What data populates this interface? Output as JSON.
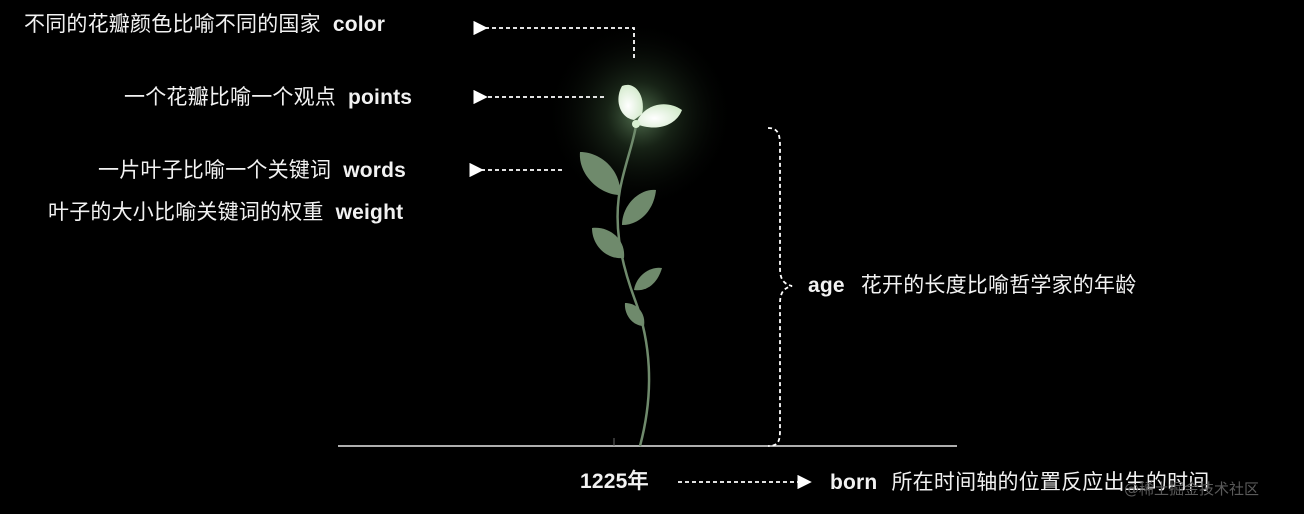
{
  "annotations": {
    "color": {
      "zh": "不同的花瓣颜色比喻不同的国家",
      "en": "color"
    },
    "points": {
      "zh": "一个花瓣比喻一个观点",
      "en": "points"
    },
    "words": {
      "zh": "一片叶子比喻一个关键词",
      "en": "words"
    },
    "weight": {
      "zh": "叶子的大小比喻关键词的权重",
      "en": "weight"
    },
    "age": {
      "en": "age",
      "zh": "花开的长度比喻哲学家的年龄"
    },
    "born": {
      "year": "1225年",
      "en": "born",
      "zh": "所在时间轴的位置反应出生的时间"
    }
  },
  "watermark": "@稀土掘金技术社区",
  "colors": {
    "background": "#000000",
    "text": "#f2f2f2",
    "stem": "#6f8a6c",
    "leaf": "#6f8a6c",
    "petal": "#e6f6e0",
    "glow": "#9fd59a"
  }
}
